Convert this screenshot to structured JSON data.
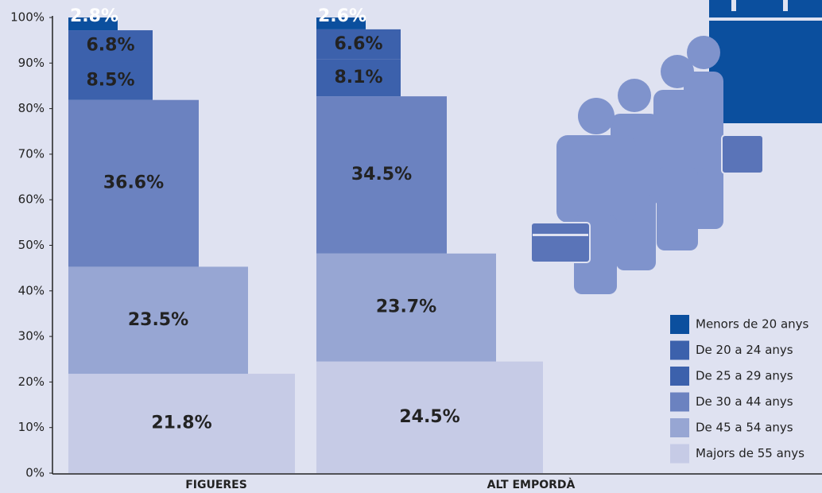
{
  "chart_data": {
    "type": "bar",
    "stacked": true,
    "categories": [
      "FIGUERES",
      "ALT EMPORDÀ"
    ],
    "series": [
      {
        "name": "Majors de 55 anys",
        "color": "#c6cbe6",
        "values": [
          21.8,
          24.5
        ],
        "value_labels": [
          "21.8%",
          "24.5%"
        ]
      },
      {
        "name": "De 45 a 54 anys",
        "color": "#97a6d3",
        "values": [
          23.5,
          23.7
        ],
        "value_labels": [
          "23.5%",
          "23.7%"
        ]
      },
      {
        "name": "De 30 a 44 anys",
        "color": "#6b82c0",
        "values": [
          36.6,
          34.5
        ],
        "value_labels": [
          "36.6%",
          "34.5%"
        ]
      },
      {
        "name": "De 25 a 29 anys",
        "color": "#3c61ac",
        "values": [
          8.5,
          8.1
        ],
        "value_labels": [
          "8.5%",
          "8.1%"
        ]
      },
      {
        "name": "De 20 a 24 anys",
        "color": "#3c61ac",
        "values": [
          6.8,
          6.6
        ],
        "value_labels": [
          "6.8%",
          "6.6%"
        ]
      },
      {
        "name": "Menors de 20 anys",
        "color": "#0b4f9e",
        "values": [
          2.8,
          2.6
        ],
        "value_labels": [
          "2.8%",
          "2.6%"
        ]
      }
    ],
    "ylim": [
      0,
      100
    ],
    "yticks": [
      {
        "value": 0,
        "label": "0%"
      },
      {
        "value": 10,
        "label": "10%"
      },
      {
        "value": 20,
        "label": "20%"
      },
      {
        "value": 30,
        "label": "30%"
      },
      {
        "value": 40,
        "label": "40%"
      },
      {
        "value": 50,
        "label": "50%"
      },
      {
        "value": 60,
        "label": "60%"
      },
      {
        "value": 70,
        "label": "70%"
      },
      {
        "value": 80,
        "label": "80%"
      },
      {
        "value": 90,
        "label": "90%"
      },
      {
        "value": 100,
        "label": "100%"
      }
    ]
  }
}
